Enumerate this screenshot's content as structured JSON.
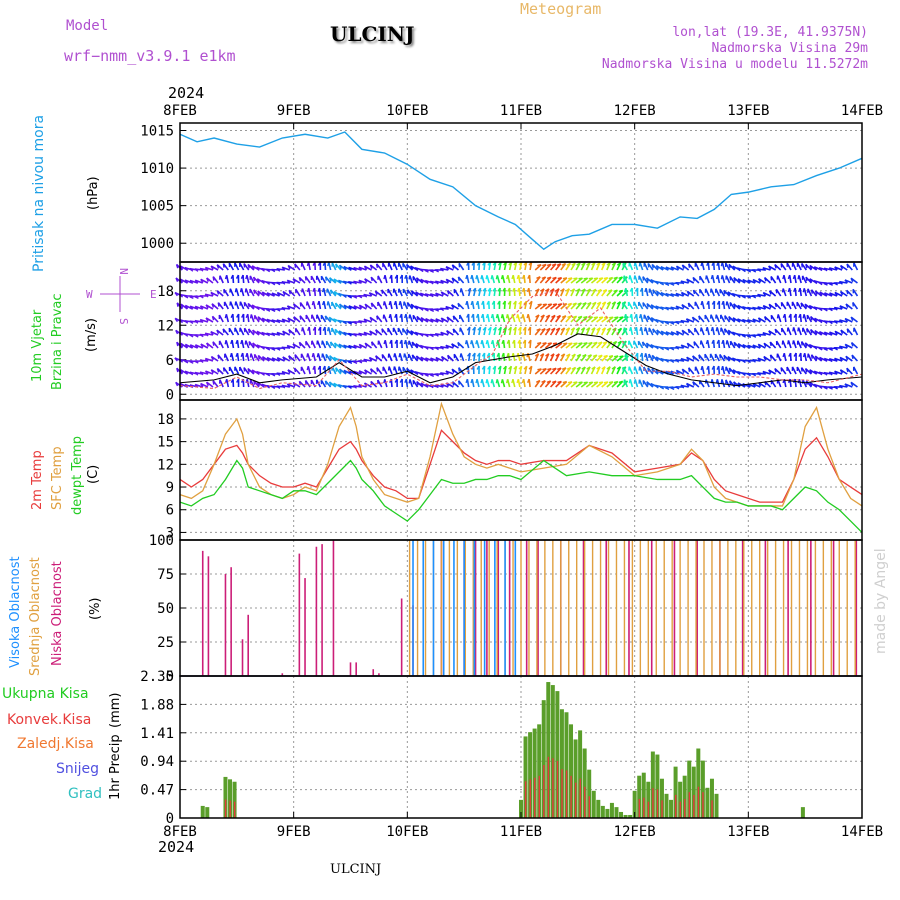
{
  "header": {
    "model_label": "Model",
    "model_name": "wrf−nmm_v3.9.1  e1km",
    "title": "ULCINJ",
    "meteogram": "Meteogram",
    "lonlat": "lon,lat (19.3E, 41.9375N)",
    "elevation": "Nadmorska Visina 29m",
    "model_elevation": "Nadmorska Visina u modelu 11.5272m",
    "year": "2024",
    "footer_station": "ULCINJ",
    "credit": "made by Angel"
  },
  "colors": {
    "pressure": "#1ea0e6",
    "temp2m": "#e83c3c",
    "sfc": "#e0a040",
    "dew": "#22cc22",
    "high_cloud": "#1e90ff",
    "mid_cloud": "#e0a040",
    "low_cloud": "#cc1e78",
    "precip_total": "#5a9e2a",
    "precip_conv": "#e03c3c",
    "label_purple": "#b050d0",
    "label_orange": "#e8b868"
  },
  "x_axis": {
    "ticks": [
      "8FEB",
      "9FEB",
      "10FEB",
      "11FEB",
      "12FEB",
      "13FEB",
      "14FEB"
    ],
    "days_from_start": [
      0,
      1,
      2,
      3,
      4,
      5,
      6
    ],
    "range_days": [
      0,
      6
    ]
  },
  "chart_data": [
    {
      "type": "line",
      "panel": "pressure",
      "ylabel": "Pritisak na nivou mora",
      "unit": "(hPa)",
      "ylim": [
        997.5,
        1016
      ],
      "yticks": [
        "1015",
        "1010",
        "1005",
        "1000"
      ],
      "ytick_values": [
        1015,
        1010,
        1005,
        1000
      ],
      "x_days": [
        0,
        0.15,
        0.3,
        0.5,
        0.7,
        0.9,
        1.1,
        1.3,
        1.45,
        1.6,
        1.8,
        2.0,
        2.2,
        2.4,
        2.6,
        2.8,
        2.95,
        3.1,
        3.2,
        3.3,
        3.45,
        3.6,
        3.8,
        4.0,
        4.2,
        4.4,
        4.55,
        4.7,
        4.85,
        5.0,
        5.2,
        5.4,
        5.6,
        5.8,
        6.0
      ],
      "series": [
        {
          "values": [
            1014.5,
            1013.5,
            1014,
            1013.2,
            1012.8,
            1014,
            1014.5,
            1014,
            1014.8,
            1012.5,
            1012,
            1010.5,
            1008.5,
            1007.5,
            1005,
            1003.5,
            1002.5,
            1000.5,
            999.2,
            1000.2,
            1001,
            1001.2,
            1002.5,
            1002.5,
            1002,
            1003.5,
            1003.3,
            1004.5,
            1006.5,
            1006.8,
            1007.5,
            1007.8,
            1009,
            1010,
            1011.3
          ]
        }
      ]
    },
    {
      "type": "line",
      "panel": "wind",
      "ylabel": "10m Vjetar",
      "ylabel2": "Brzina i Pravac",
      "unit": "(m/s)",
      "compass": {
        "n": "N",
        "s": "S",
        "e": "E",
        "w": "W"
      },
      "ylim": [
        -1,
        23
      ],
      "yticks": [
        "18",
        "12",
        "6",
        "0"
      ],
      "ytick_values": [
        18,
        12,
        6,
        0
      ],
      "x_days": [
        0,
        0.3,
        0.5,
        0.7,
        0.9,
        1.2,
        1.4,
        1.6,
        1.8,
        2.0,
        2.2,
        2.4,
        2.6,
        2.75,
        2.9,
        3.1,
        3.3,
        3.5,
        3.7,
        3.9,
        4.1,
        4.3,
        4.5,
        4.7,
        4.9,
        5.1,
        5.3,
        5.5,
        5.7,
        6.0
      ],
      "series": [
        {
          "values": [
            2,
            2.5,
            3.5,
            2,
            2.5,
            3,
            5.5,
            3,
            3,
            4,
            2,
            3,
            5.5,
            6,
            6.5,
            7,
            8.5,
            10.5,
            10,
            7.5,
            5,
            3.5,
            2.5,
            2,
            1.5,
            2,
            2.5,
            2,
            2.5,
            3
          ]
        },
        {
          "values": [
            1.5,
            1,
            3,
            1,
            2,
            1.5,
            6,
            1.5,
            2,
            3.5,
            1.5,
            2,
            5,
            7,
            13,
            17,
            18,
            12,
            15,
            9,
            4,
            4,
            3,
            3.5,
            3,
            3,
            2.5,
            2.5,
            2,
            3.5
          ]
        }
      ]
    },
    {
      "type": "line",
      "panel": "temperature",
      "ylabel": "2m Temp",
      "ylabel2": "SFC Temp",
      "ylabel3": "dewpt Temp",
      "unit": "(C)",
      "ylim": [
        2,
        20.5
      ],
      "yticks": [
        "18",
        "15",
        "12",
        "9",
        "6",
        "3"
      ],
      "ytick_values": [
        18,
        15,
        12,
        9,
        6,
        3
      ],
      "x_days": [
        0,
        0.1,
        0.2,
        0.3,
        0.4,
        0.5,
        0.55,
        0.6,
        0.7,
        0.8,
        0.9,
        1.0,
        1.1,
        1.2,
        1.3,
        1.4,
        1.5,
        1.55,
        1.6,
        1.7,
        1.8,
        1.9,
        2.0,
        2.1,
        2.2,
        2.3,
        2.4,
        2.5,
        2.6,
        2.7,
        2.8,
        2.9,
        3.0,
        3.2,
        3.4,
        3.6,
        3.8,
        4.0,
        4.2,
        4.4,
        4.5,
        4.6,
        4.7,
        4.8,
        4.9,
        5.0,
        5.1,
        5.2,
        5.3,
        5.4,
        5.5,
        5.6,
        5.7,
        5.8,
        5.9,
        6.0
      ],
      "series": [
        {
          "name": "2m Temp",
          "values": [
            10,
            9,
            10,
            12,
            14,
            14.5,
            13.5,
            12,
            10.5,
            9.5,
            9,
            9,
            9.5,
            9,
            11.5,
            14,
            15,
            14,
            12.5,
            10.5,
            9,
            8.5,
            7.5,
            7.5,
            12,
            16.5,
            15,
            13.5,
            12.5,
            12,
            12.5,
            12.5,
            12,
            12.5,
            12.5,
            14.5,
            13.5,
            11,
            11.5,
            12,
            13.5,
            12.5,
            10,
            8.5,
            8,
            7.5,
            7,
            7,
            7,
            10,
            14,
            15.5,
            13,
            10,
            9,
            8
          ]
        },
        {
          "name": "SFC Temp",
          "values": [
            8,
            7.5,
            8.5,
            12,
            16,
            18,
            16,
            12,
            9,
            8,
            7.5,
            8,
            9,
            8.5,
            12,
            17,
            19.5,
            17,
            13,
            10,
            8,
            7.5,
            7,
            7.5,
            13,
            20,
            16,
            13,
            12,
            11.5,
            12,
            11.5,
            11,
            11.5,
            12,
            14.5,
            13,
            10.5,
            11,
            12,
            14,
            12.5,
            9,
            7.5,
            7,
            6.5,
            6.5,
            6.5,
            6.5,
            10,
            17,
            19.5,
            14,
            10,
            7.5,
            6.5
          ]
        },
        {
          "name": "dewpt Temp",
          "values": [
            7,
            6.5,
            7.5,
            8,
            10,
            12.5,
            11.5,
            9,
            8.5,
            8,
            7.5,
            8.5,
            8.5,
            8,
            9.5,
            11,
            12.5,
            11.5,
            10,
            8.5,
            6.5,
            5.5,
            4.5,
            6,
            8,
            10,
            9.5,
            9.5,
            10,
            10,
            10.5,
            10.5,
            10,
            12.5,
            10.5,
            11,
            10.5,
            10.5,
            10,
            10,
            10.5,
            9,
            7.5,
            7,
            7,
            6.5,
            6.5,
            6.5,
            6,
            7.5,
            9,
            8.5,
            7,
            6,
            4.5,
            3
          ]
        }
      ]
    },
    {
      "type": "bar",
      "panel": "cloud",
      "ylabel": "Visoka Oblacnost",
      "ylabel2": "Srednja Oblacnost",
      "ylabel3": "Niska Oblacnost",
      "unit": "(%)",
      "ylim": [
        0,
        100
      ],
      "yticks": [
        "100",
        "75",
        "50",
        "25",
        "0"
      ],
      "ytick_values": [
        100,
        75,
        50,
        25,
        0
      ],
      "low_cloud_x_days": [
        0.2,
        0.25,
        0.4,
        0.45,
        0.55,
        0.6,
        0.9,
        1.05,
        1.1,
        1.2,
        1.25,
        1.35,
        1.5,
        1.55,
        1.7,
        1.75,
        1.95,
        2.05,
        2.3,
        2.5,
        2.6,
        2.7,
        2.8,
        2.9,
        3.05,
        3.15,
        3.35,
        3.55,
        3.75,
        3.95,
        4.15,
        4.35,
        4.55,
        4.75,
        4.95,
        5.15,
        5.35,
        5.55,
        5.75,
        5.95
      ],
      "low_cloud_values": [
        92,
        88,
        75,
        80,
        27,
        45,
        2,
        90,
        72,
        95,
        97,
        100,
        10,
        10,
        5,
        2,
        57,
        52,
        100,
        100,
        100,
        100,
        100,
        100,
        100,
        100,
        100,
        100,
        100,
        100,
        100,
        100,
        100,
        100,
        100,
        100,
        100,
        100,
        100,
        100
      ]
    },
    {
      "type": "bar",
      "panel": "precip",
      "ylabel": "1hr Precip",
      "unit": "(mm)",
      "legend": [
        "Ukupna Kisa",
        "Konvek.Kisa",
        "Zaledj.Kisa",
        "Snijeg",
        "Grad"
      ],
      "ylim": [
        0,
        2.35
      ],
      "yticks": [
        "2.35",
        "1.88",
        "1.41",
        "0.94",
        "0.47",
        "0"
      ],
      "ytick_values": [
        2.35,
        1.88,
        1.41,
        0.94,
        0.47,
        0
      ],
      "x_days": [
        0.2,
        0.24,
        0.4,
        0.44,
        0.48,
        3.0,
        3.04,
        3.08,
        3.12,
        3.16,
        3.2,
        3.24,
        3.28,
        3.32,
        3.36,
        3.4,
        3.44,
        3.48,
        3.52,
        3.56,
        3.6,
        3.64,
        3.68,
        3.72,
        3.76,
        3.8,
        3.84,
        3.88,
        3.92,
        3.96,
        4.0,
        4.04,
        4.08,
        4.12,
        4.16,
        4.2,
        4.24,
        4.28,
        4.32,
        4.36,
        4.4,
        4.44,
        4.48,
        4.52,
        4.56,
        4.6,
        4.64,
        4.68,
        4.72,
        5.48
      ],
      "values": [
        0.2,
        0.18,
        0.68,
        0.64,
        0.6,
        0.3,
        1.35,
        1.42,
        1.48,
        1.55,
        1.95,
        2.25,
        2.2,
        2.1,
        1.8,
        1.75,
        1.55,
        1.3,
        1.45,
        1.15,
        0.8,
        0.45,
        0.3,
        0.2,
        0.15,
        0.25,
        0.18,
        0.1,
        0.05,
        0.05,
        0.45,
        0.7,
        0.75,
        0.6,
        1.1,
        1.05,
        0.65,
        0.4,
        0.3,
        0.85,
        0.6,
        0.7,
        0.95,
        0.85,
        1.15,
        0.95,
        0.5,
        0.65,
        0.4,
        0.18
      ]
    }
  ]
}
